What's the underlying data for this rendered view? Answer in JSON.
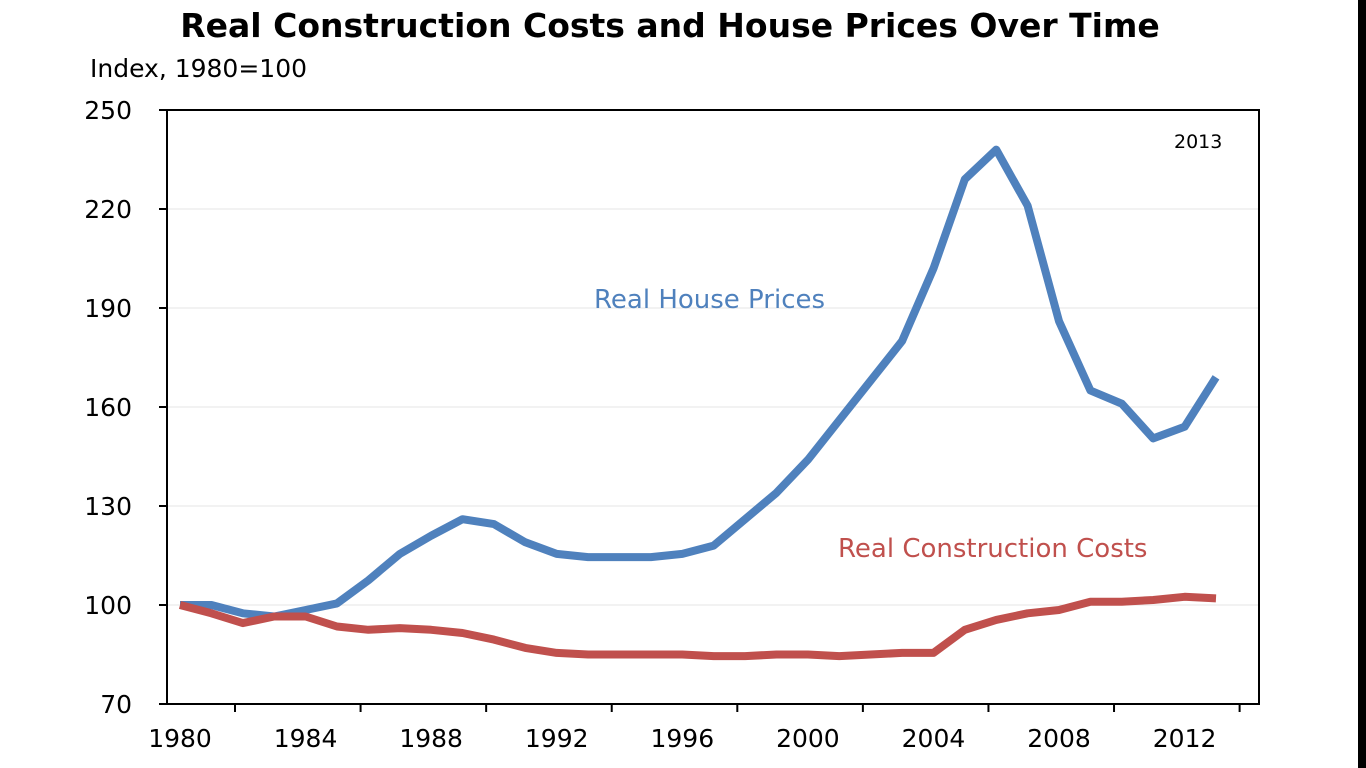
{
  "chart_data": {
    "type": "line",
    "title": "Real Construction Costs and House Prices Over Time",
    "ylabel": "Index, 1980=100",
    "xlabel": "",
    "xlim": [
      1980,
      2014
    ],
    "ylim": [
      70,
      250
    ],
    "x_ticks": [
      "1980",
      "1984",
      "1988",
      "1992",
      "1996",
      "2000",
      "2004",
      "2008",
      "2012"
    ],
    "y_ticks": [
      "70",
      "100",
      "130",
      "160",
      "190",
      "220",
      "250"
    ],
    "annotation": "2013",
    "x": [
      1980,
      1981,
      1982,
      1983,
      1984,
      1985,
      1986,
      1987,
      1988,
      1989,
      1990,
      1991,
      1992,
      1993,
      1994,
      1995,
      1996,
      1997,
      1998,
      1999,
      2000,
      2001,
      2002,
      2003,
      2004,
      2005,
      2006,
      2007,
      2008,
      2009,
      2010,
      2011,
      2012,
      2013
    ],
    "series": [
      {
        "name": "Real House Prices",
        "color": "#4f81bd",
        "values": [
          100,
          100,
          97.5,
          96.5,
          98.5,
          100.5,
          107.5,
          115.5,
          121,
          126,
          124.5,
          119,
          115.5,
          114.5,
          114.5,
          114.5,
          115.5,
          118,
          126,
          134,
          144,
          156,
          168,
          180,
          202,
          229,
          238,
          221,
          186,
          165,
          161,
          150.5,
          154,
          169
        ]
      },
      {
        "name": "Real Construction Costs",
        "color": "#c0504d",
        "values": [
          100,
          97.5,
          94.5,
          96.5,
          96.5,
          93.5,
          92.5,
          93,
          92.5,
          91.5,
          89.5,
          87,
          85.5,
          85,
          85,
          85,
          85,
          84.5,
          84.5,
          85,
          85,
          84.5,
          85,
          85.5,
          85.5,
          92.5,
          95.5,
          97.5,
          98.5,
          101,
          101,
          101.5,
          102.5,
          102
        ]
      }
    ]
  }
}
